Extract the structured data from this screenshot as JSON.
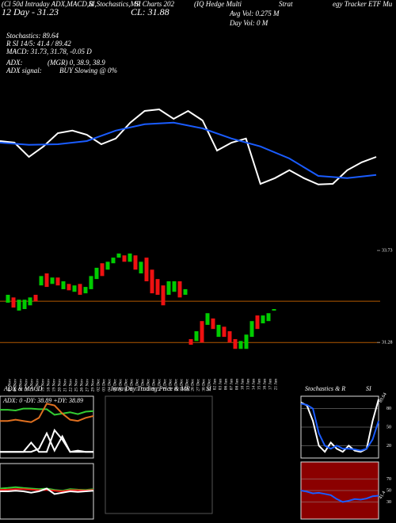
{
  "header": {
    "texts": [
      "(Cl 50d Intraday ADX,MACD,B",
      "SI,Stochastics,MR",
      "SI Charts 202",
      "(IQ Hedge Multi",
      "Strat",
      "egy Tracker ETF Mu",
      "12 Day - 31.23",
      "CL: 31.88",
      "Avg Vol: 0.275 M",
      "Day Vol: 0  M",
      "Stochastics: 89.64",
      "R          SI 14/5: 41.4  / 89.42",
      "MACD: 31.73, 31.78, -0.05 D",
      "ADX:",
      "(MGR) 0, 38.9, 38.9",
      "ADX  signal:",
      "BUY Slowing @ 0%"
    ]
  },
  "chart_data": [
    {
      "type": "candlestick",
      "categories": [
        "07 Nov",
        "08 Nov",
        "11 Nov",
        "12 Nov",
        "13 Nov",
        "14 Nov",
        "15 Nov",
        "18 Nov",
        "19 Nov",
        "20 Nov",
        "21 Nov",
        "22 Nov",
        "25 Nov",
        "26 Nov",
        "27 Nov",
        "29 Nov",
        "02 Dec",
        "03 Dec",
        "04 Dec",
        "05 Dec",
        "06 Dec",
        "09 Dec",
        "10 Dec",
        "11 Dec",
        "12 Dec",
        "13 Dec",
        "16 Dec",
        "17 Dec",
        "18 Dec",
        "19 Dec",
        "20 Dec",
        "23 Dec",
        "24 Dec",
        "26 Dec",
        "27 Dec",
        "30 Dec",
        "31 Dec",
        "02 Jan",
        "03 Jan",
        "06 Jan",
        "07 Jan",
        "08 Jan",
        "10 Jan",
        "13 Jan",
        "14 Jan",
        "15 Jan",
        "16 Jan",
        "17 Jan",
        "21 Jan"
      ],
      "open": [
        32.34,
        32.48,
        32.13,
        32.17,
        32.27,
        32.55,
        32.8,
        33.12,
        32.84,
        33.01,
        32.7,
        32.84,
        32.63,
        32.84,
        32.59,
        32.7,
        32.97,
        33.39,
        33.22,
        33.39,
        33.54,
        33.6,
        33.43,
        33.6,
        33.12,
        33.54,
        33.22,
        32.97,
        32.8,
        32.55,
        32.63,
        32.91,
        32.55,
        31.37,
        31.32,
        31.85,
        31.75,
        31.92,
        31.43,
        31.7,
        31.58,
        31.37,
        31.11,
        31.11,
        31.43,
        32.0,
        31.79,
        31.85,
        32.13
      ],
      "close": [
        32.55,
        32.21,
        32.42,
        32.42,
        32.48,
        32.38,
        33.05,
        32.76,
        33.01,
        32.8,
        32.91,
        32.67,
        32.8,
        32.55,
        32.76,
        33.05,
        33.27,
        33.05,
        33.43,
        33.54,
        33.65,
        33.43,
        33.65,
        33.22,
        33.43,
        32.91,
        32.59,
        32.55,
        32.27,
        32.91,
        32.91,
        32.48,
        32.7,
        31.22,
        31.58,
        31.28,
        32.06,
        31.64,
        31.75,
        31.43,
        31.28,
        31.11,
        31.32,
        31.49,
        31.85,
        31.64,
        32.0,
        32.06,
        32.17
      ],
      "up_color": "#00cc00",
      "down_color": "#ee1111",
      "ylim": [
        31.01,
        34.07
      ],
      "yticks": [
        33.73,
        31.28
      ],
      "hlines": [
        32.38,
        31.28
      ],
      "hline_color": "#b35900"
    },
    {
      "type": "line",
      "ylim": [
        31,
        34
      ],
      "series": [
        {
          "color": "#ffffff",
          "values": [
            32.55,
            32.5,
            32.05,
            32.38,
            32.8,
            32.88,
            32.75,
            32.45,
            32.63,
            33.13,
            33.5,
            33.55,
            33.25,
            33.5,
            33.2,
            32.25,
            32.5,
            32.63,
            31.2,
            31.38,
            31.63,
            31.38,
            31.18,
            31.2,
            31.63,
            31.88,
            32.05
          ]
        },
        {
          "color": "#1a5cff",
          "values": [
            32.5,
            32.43,
            32.45,
            32.55,
            32.88,
            33.08,
            33.13,
            32.95,
            32.63,
            32.38,
            32.0,
            31.45,
            31.38,
            31.48
          ]
        }
      ]
    },
    {
      "type": "line",
      "title": [
        "ADX  & MACD"
      ],
      "legend": "ADX: 0  -DY: 38.89  +DY: 38.89",
      "ylim": [
        0,
        100
      ],
      "series": [
        {
          "color": "#33cc33",
          "values": [
            78,
            78,
            77,
            80,
            80,
            79,
            79,
            70,
            72,
            74,
            71,
            75,
            76
          ]
        },
        {
          "color": "#e07020",
          "values": [
            60,
            60,
            62,
            60,
            58,
            65,
            88,
            85,
            72,
            62,
            60,
            65,
            68
          ]
        },
        {
          "color": "#ffffff",
          "values": [
            10,
            10,
            10,
            10,
            10,
            15,
            40,
            12,
            35,
            10,
            10,
            10,
            10
          ]
        },
        {
          "color": "#ffffff",
          "values": [
            10,
            10,
            10,
            10,
            25,
            10,
            10,
            45,
            30,
            10,
            12,
            10,
            10
          ]
        }
      ]
    },
    {
      "type": "line",
      "ylim": [
        -1,
        1
      ],
      "series": [
        {
          "color": "#33cc33",
          "values": [
            0.1,
            0.12,
            0.15,
            0.12,
            0.1,
            0.08,
            0.1,
            0.05,
            0.02,
            0.08,
            0.06,
            0.05,
            0.08
          ]
        },
        {
          "color": "#ee1111",
          "values": [
            0.05,
            0.06,
            0.08,
            0.08,
            0.06,
            0.04,
            0.05,
            0.02,
            0.0,
            0.04,
            0.04,
            0.03,
            0.05
          ]
        },
        {
          "color": "#ffffff",
          "values": [
            0.0,
            0.0,
            0.02,
            0.0,
            -0.05,
            0.0,
            0.1,
            -0.1,
            -0.05,
            0.0,
            -0.02,
            0.0,
            0.02
          ]
        }
      ]
    },
    {
      "type": "line",
      "title": [
        "Intra Day Trading Price  & MR",
        "SI"
      ],
      "series": []
    },
    {
      "type": "line",
      "title": [
        "Stochastics & R",
        "SI"
      ],
      "ylim": [
        0,
        100
      ],
      "yticks": [
        80,
        50,
        20
      ],
      "annotation": "89.64",
      "series": [
        {
          "color": "#ffffff",
          "values": [
            90,
            85,
            60,
            20,
            10,
            25,
            15,
            10,
            20,
            12,
            10,
            15,
            60,
            95
          ]
        },
        {
          "color": "#1a5cff",
          "values": [
            88,
            86,
            80,
            40,
            20,
            15,
            20,
            15,
            15,
            14,
            12,
            15,
            30,
            60
          ]
        }
      ]
    },
    {
      "type": "line",
      "ylim": [
        0,
        100
      ],
      "yticks": [
        70,
        50,
        30
      ],
      "annotation": "41.4",
      "background": "#8b0000",
      "series": [
        {
          "color": "#1a5cff",
          "values": [
            50,
            48,
            45,
            46,
            44,
            42,
            35,
            30,
            32,
            35,
            34,
            36,
            40,
            41
          ]
        }
      ]
    }
  ]
}
